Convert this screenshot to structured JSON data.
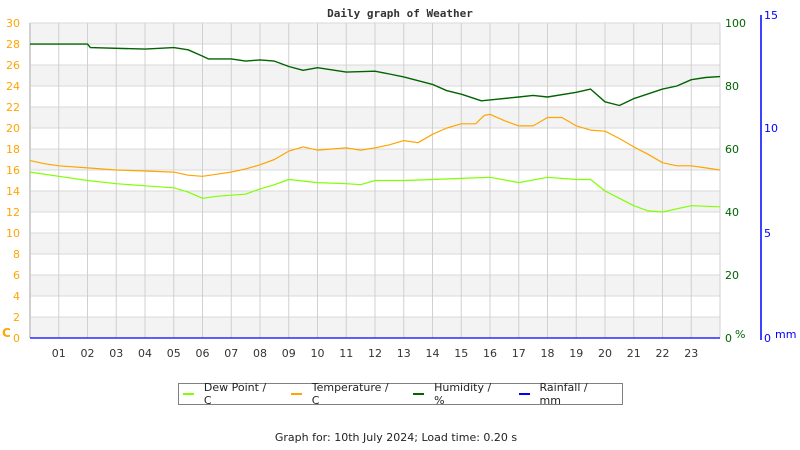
{
  "chart_data": {
    "type": "line",
    "title": "Daily graph of Weather",
    "x_ticks": [
      "01",
      "02",
      "03",
      "04",
      "05",
      "06",
      "07",
      "08",
      "09",
      "10",
      "11",
      "12",
      "13",
      "14",
      "15",
      "16",
      "17",
      "18",
      "19",
      "20",
      "21",
      "22",
      "23"
    ],
    "xlim": [
      0,
      24
    ],
    "axes": {
      "left": {
        "unit": "C",
        "ylim": [
          0,
          30
        ],
        "ticks": [
          0,
          2,
          4,
          6,
          8,
          10,
          12,
          14,
          16,
          18,
          20,
          22,
          24,
          26,
          28,
          30
        ],
        "color": "#ffa500"
      },
      "humidity": {
        "unit": "%",
        "ylim": [
          0,
          100
        ],
        "ticks": [
          0,
          20,
          40,
          60,
          80,
          100
        ],
        "color": "#006400"
      },
      "rainfall": {
        "unit": "mm",
        "ylim": [
          0,
          15
        ],
        "ticks": [
          0,
          5,
          10,
          15
        ],
        "color": "#0000ff"
      }
    },
    "grid": true,
    "legend_position": "bottom",
    "series": [
      {
        "name": "Dew Point / C",
        "axis": "left",
        "color": "#80ff00",
        "x": [
          0,
          1,
          2,
          3,
          4,
          4.5,
          5,
          5.5,
          6,
          6.5,
          7,
          7.5,
          8,
          8.5,
          9,
          10,
          11,
          11.5,
          12,
          13,
          14,
          15,
          16,
          17,
          18,
          19,
          19.5,
          20,
          20.5,
          21,
          21.5,
          22,
          22.5,
          23,
          24
        ],
        "y": [
          15.8,
          15.4,
          15.0,
          14.7,
          14.5,
          14.4,
          14.3,
          13.9,
          13.3,
          13.5,
          13.6,
          13.7,
          14.2,
          14.6,
          15.1,
          14.8,
          14.7,
          14.6,
          15.0,
          15.0,
          15.1,
          15.2,
          15.3,
          14.8,
          15.3,
          15.1,
          15.1,
          14.0,
          13.3,
          12.6,
          12.1,
          12.0,
          12.3,
          12.6,
          12.5
        ]
      },
      {
        "name": "Temperature / C",
        "axis": "left",
        "color": "#ffa500",
        "x": [
          0,
          0.5,
          1,
          2,
          3,
          4,
          5,
          5.5,
          6,
          6.5,
          7,
          7.5,
          8,
          8.5,
          9,
          9.5,
          10,
          11,
          11.5,
          12,
          12.5,
          13,
          13.5,
          14,
          14.5,
          15,
          15.5,
          15.8,
          16,
          16.5,
          17,
          17.5,
          18,
          18.5,
          19,
          19.5,
          20,
          20.5,
          21,
          21.5,
          22,
          22.5,
          23,
          23.5,
          24
        ],
        "y": [
          16.9,
          16.6,
          16.4,
          16.2,
          16.0,
          15.9,
          15.8,
          15.5,
          15.4,
          15.6,
          15.8,
          16.1,
          16.5,
          17.0,
          17.8,
          18.2,
          17.9,
          18.1,
          17.9,
          18.1,
          18.4,
          18.8,
          18.6,
          19.4,
          20.0,
          20.4,
          20.4,
          21.2,
          21.3,
          20.7,
          20.2,
          20.2,
          21.0,
          21.0,
          20.2,
          19.8,
          19.7,
          19.0,
          18.2,
          17.5,
          16.7,
          16.4,
          16.4,
          16.2,
          16.0
        ]
      },
      {
        "name": "Humidity / %",
        "axis": "humidity",
        "color": "#006400",
        "x": [
          0,
          2,
          2.1,
          4,
          5,
          5.5,
          6,
          6.2,
          7,
          7.5,
          8,
          8.5,
          9,
          9.5,
          10,
          11,
          12,
          12.5,
          13,
          14,
          14.5,
          15,
          15.7,
          16,
          17,
          17.5,
          18,
          19,
          19.5,
          20,
          20.5,
          21,
          22,
          22.5,
          23,
          23.5,
          24
        ],
        "y": [
          93.3,
          93.3,
          92.2,
          91.7,
          92.2,
          91.5,
          89.5,
          88.6,
          88.6,
          87.9,
          88.3,
          87.9,
          86.2,
          85.0,
          85.8,
          84.4,
          84.7,
          83.8,
          82.9,
          80.5,
          78.5,
          77.4,
          75.3,
          75.6,
          76.5,
          77.0,
          76.5,
          78.0,
          79.0,
          75.0,
          73.8,
          76.0,
          79.0,
          80.0,
          82.0,
          82.7,
          83.0
        ]
      },
      {
        "name": "Rainfall / mm",
        "axis": "rainfall",
        "color": "#0000ff",
        "x": [
          0,
          24
        ],
        "y": [
          0,
          0
        ]
      }
    ]
  },
  "footer": "Graph for: 10th July 2024; Load time: 0.20 s"
}
